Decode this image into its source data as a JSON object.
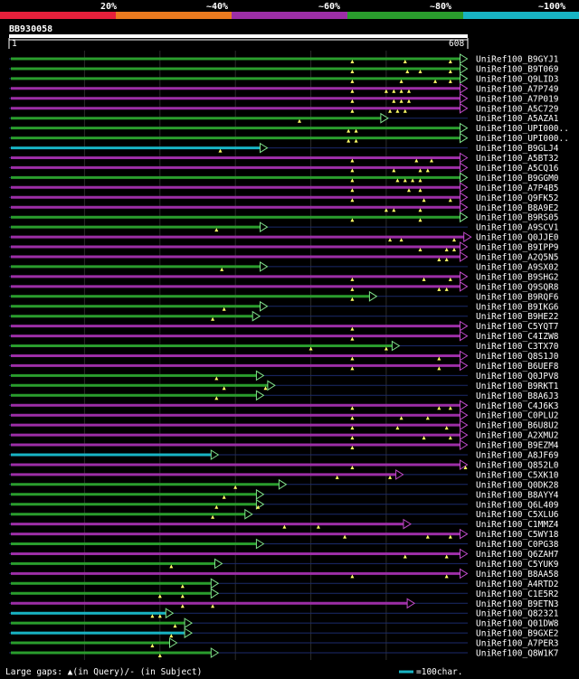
{
  "legend": {
    "labels": [
      "20%",
      "~40%",
      "~60%",
      "~80%",
      "~100%"
    ],
    "colors": [
      "#e5203b",
      "#ea7a1f",
      "#9c2ea6",
      "#2a9d2d",
      "#18b4c4"
    ]
  },
  "query": {
    "title": "BB930058",
    "start": "1",
    "end": "608"
  },
  "footer": {
    "text": "Large gaps: ▲(in Query)/- (in Subject)",
    "scale_text": "=100char."
  },
  "chart_data": {
    "type": "alignment-overview",
    "query_length": 608,
    "hits": [
      {
        "label": "UniRef100_B9GYJ1",
        "color": "magenta-green",
        "end": 605,
        "markers": [
          455,
          525,
          585
        ]
      },
      {
        "label": "UniRef100_B9T069",
        "color": "green",
        "end": 605,
        "markers": [
          455,
          528,
          545,
          585
        ]
      },
      {
        "label": "UniRef100_Q9LID3",
        "color": "green",
        "end": 605,
        "markers": [
          455,
          520,
          565,
          585
        ]
      },
      {
        "label": "UniRef100_A7P749",
        "color": "magenta",
        "end": 605,
        "markers": [
          455,
          500,
          510,
          520,
          530
        ]
      },
      {
        "label": "UniRef100_A7P019",
        "color": "magenta",
        "end": 605,
        "markers": [
          455,
          510,
          520,
          530
        ]
      },
      {
        "label": "UniRef100_A5C729",
        "color": "magenta",
        "end": 605,
        "markers": [
          455,
          505,
          515,
          525
        ]
      },
      {
        "label": "UniRef100_A5AZA1",
        "color": "green",
        "end": 500,
        "markers": [
          385
        ]
      },
      {
        "label": "UniRef100_UPI000..",
        "color": "green",
        "end": 605,
        "markers": [
          450,
          460
        ]
      },
      {
        "label": "UniRef100_UPI000..",
        "color": "green",
        "end": 605,
        "markers": [
          450,
          460
        ]
      },
      {
        "label": "UniRef100_B9GLJ4",
        "color": "cyan",
        "end": 340,
        "markers": [
          280
        ]
      },
      {
        "label": "UniRef100_A5BT32",
        "color": "magenta",
        "end": 605,
        "markers": [
          455,
          540,
          560
        ]
      },
      {
        "label": "UniRef100_A5CQ16",
        "color": "magenta",
        "end": 605,
        "markers": [
          455,
          510,
          545,
          555
        ]
      },
      {
        "label": "UniRef100_B9GGM0",
        "color": "green",
        "end": 605,
        "markers": [
          455,
          515,
          525,
          535,
          545
        ]
      },
      {
        "label": "UniRef100_A7P4B5",
        "color": "magenta",
        "end": 605,
        "markers": [
          455,
          530,
          545
        ]
      },
      {
        "label": "UniRef100_Q9FK52",
        "color": "magenta",
        "end": 605,
        "markers": [
          455,
          550,
          585
        ]
      },
      {
        "label": "UniRef100_B8A9E2",
        "color": "magenta",
        "end": 605,
        "markers": [
          500,
          510,
          545
        ]
      },
      {
        "label": "UniRef100_B9RS05",
        "color": "green",
        "end": 605,
        "markers": [
          455,
          545
        ]
      },
      {
        "label": "UniRef100_A9SCV1",
        "color": "green",
        "end": 340,
        "markers": [
          275
        ]
      },
      {
        "label": "UniRef100_Q0JJE0",
        "color": "magenta",
        "end": 610,
        "markers": [
          505,
          520,
          590
        ]
      },
      {
        "label": "UniRef100_B9IPP9",
        "color": "magenta",
        "end": 605,
        "markers": [
          545,
          580,
          590
        ]
      },
      {
        "label": "UniRef100_A2Q5N5",
        "color": "magenta",
        "end": 605,
        "markers": [
          570,
          580
        ]
      },
      {
        "label": "UniRef100_A9SX02",
        "color": "green",
        "end": 340,
        "markers": [
          282
        ]
      },
      {
        "label": "UniRef100_B9SHG2",
        "color": "magenta",
        "end": 605,
        "markers": [
          455,
          550,
          585
        ]
      },
      {
        "label": "UniRef100_Q9SQR8",
        "color": "magenta",
        "end": 605,
        "markers": [
          455,
          570,
          580
        ]
      },
      {
        "label": "UniRef100_B9RQF6",
        "color": "green",
        "end": 485,
        "markers": [
          455
        ]
      },
      {
        "label": "UniRef100_B9IKG6",
        "color": "green",
        "end": 340,
        "markers": [
          285
        ]
      },
      {
        "label": "UniRef100_B9HE22",
        "color": "green",
        "end": 330,
        "markers": [
          270
        ]
      },
      {
        "label": "UniRef100_C5YQT7",
        "color": "magenta",
        "end": 605,
        "markers": [
          455
        ]
      },
      {
        "label": "UniRef100_C4IZW8",
        "color": "magenta",
        "end": 605,
        "markers": [
          455
        ]
      },
      {
        "label": "UniRef100_C3TX70",
        "color": "green",
        "end": 515,
        "markers": [
          400,
          500
        ]
      },
      {
        "label": "UniRef100_Q8S1J0",
        "color": "magenta",
        "end": 605,
        "markers": [
          455,
          570
        ]
      },
      {
        "label": "UniRef100_B6UEF8",
        "color": "magenta",
        "end": 605,
        "markers": [
          455,
          570
        ]
      },
      {
        "label": "UniRef100_Q0JPV8",
        "color": "green",
        "end": 335,
        "markers": [
          275
        ]
      },
      {
        "label": "UniRef100_B9RKT1",
        "color": "green",
        "end": 350,
        "markers": [
          285,
          340
        ]
      },
      {
        "label": "UniRef100_B8A6J3",
        "color": "green",
        "end": 335,
        "markers": [
          275
        ]
      },
      {
        "label": "UniRef100_C4J6K3",
        "color": "magenta",
        "end": 605,
        "markers": [
          455,
          570,
          585
        ]
      },
      {
        "label": "UniRef100_C0PLU2",
        "color": "magenta",
        "end": 605,
        "markers": [
          455,
          520,
          555
        ]
      },
      {
        "label": "UniRef100_B6U8U2",
        "color": "magenta",
        "end": 605,
        "markers": [
          455,
          515,
          580
        ]
      },
      {
        "label": "UniRef100_A2XMU2",
        "color": "magenta",
        "end": 605,
        "markers": [
          455,
          550,
          585
        ]
      },
      {
        "label": "UniRef100_B9EZM4",
        "color": "magenta",
        "end": 605,
        "markers": [
          455
        ]
      },
      {
        "label": "UniRef100_A8JF69",
        "color": "cyan",
        "end": 275,
        "markers": []
      },
      {
        "label": "UniRef100_Q852L0",
        "color": "magenta",
        "end": 605,
        "markers": [
          455,
          605
        ]
      },
      {
        "label": "UniRef100_C5XK10",
        "color": "magenta",
        "end": 520,
        "markers": [
          435,
          505
        ]
      },
      {
        "label": "UniRef100_Q0DK28",
        "color": "green",
        "end": 365,
        "markers": [
          300
        ]
      },
      {
        "label": "UniRef100_B8AYY4",
        "color": "green",
        "end": 335,
        "markers": [
          285
        ]
      },
      {
        "label": "UniRef100_Q6L409",
        "color": "green",
        "end": 335,
        "markers": [
          275,
          330
        ]
      },
      {
        "label": "UniRef100_C5XLU6",
        "color": "green",
        "end": 320,
        "markers": [
          270
        ]
      },
      {
        "label": "UniRef100_C1MMZ4",
        "color": "magenta",
        "end": 530,
        "markers": [
          365,
          410
        ]
      },
      {
        "label": "UniRef100_C5WY18",
        "color": "magenta",
        "end": 605,
        "markers": [
          445,
          555,
          585
        ]
      },
      {
        "label": "UniRef100_C0PG38",
        "color": "green",
        "end": 335,
        "markers": []
      },
      {
        "label": "UniRef100_Q6ZAH7",
        "color": "magenta",
        "end": 605,
        "markers": [
          525,
          580
        ]
      },
      {
        "label": "UniRef100_C5YUK9",
        "color": "green",
        "end": 280,
        "markers": [
          215
        ]
      },
      {
        "label": "UniRef100_B8AA58",
        "color": "magenta",
        "end": 605,
        "markers": [
          455,
          580
        ]
      },
      {
        "label": "UniRef100_A4RTD2",
        "color": "green",
        "end": 275,
        "markers": [
          230
        ]
      },
      {
        "label": "UniRef100_C1E5R2",
        "color": "green",
        "end": 275,
        "markers": [
          200,
          230
        ]
      },
      {
        "label": "UniRef100_B9ETN3",
        "color": "magenta",
        "end": 535,
        "markers": [
          230,
          270
        ]
      },
      {
        "label": "UniRef100_Q82321",
        "color": "cyan",
        "end": 215,
        "markers": [
          190,
          200
        ]
      },
      {
        "label": "UniRef100_Q01DW8",
        "color": "green",
        "end": 240,
        "markers": [
          220
        ]
      },
      {
        "label": "UniRef100_B9GXE2",
        "color": "cyan",
        "end": 240,
        "markers": [
          215
        ]
      },
      {
        "label": "UniRef100_A7PER3",
        "color": "green",
        "end": 220,
        "markers": [
          190
        ]
      },
      {
        "label": "UniRef100_Q8W1K7",
        "color": "green",
        "end": 275,
        "markers": [
          200
        ]
      }
    ]
  }
}
